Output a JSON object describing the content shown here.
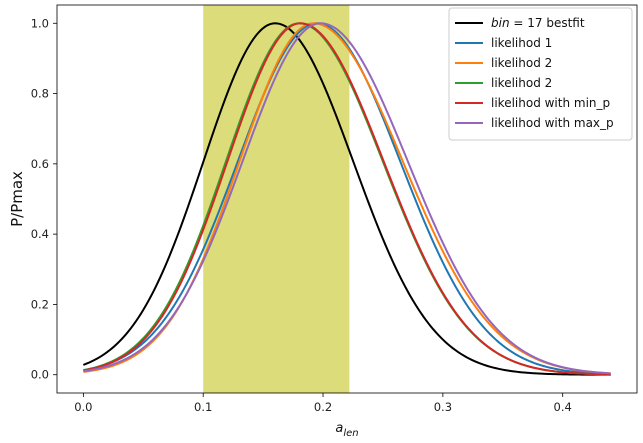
{
  "chart_data": {
    "type": "line",
    "title": "",
    "xlabel_base": "a",
    "xlabel_sub": "len",
    "ylabel": "P/Pmax",
    "xlim": [
      -0.022,
      0.462
    ],
    "ylim": [
      -0.052,
      1.052
    ],
    "xticks": [
      0.0,
      0.1,
      0.2,
      0.3,
      0.4
    ],
    "xtick_labels": [
      "0.0",
      "0.1",
      "0.2",
      "0.3",
      "0.4"
    ],
    "yticks": [
      0.0,
      0.2,
      0.4,
      0.6,
      0.8,
      1.0
    ],
    "ytick_labels": [
      "0.0",
      "0.2",
      "0.4",
      "0.6",
      "0.8",
      "1.0"
    ],
    "grid": false,
    "legend_position": "top-right",
    "shaded_region": {
      "x_start": 0.1,
      "x_end": 0.222,
      "color": "#dcdc7a"
    },
    "x_range": [
      0.0,
      0.44
    ],
    "series": [
      {
        "name_italic": "bin",
        "name": " = 17 bestfit",
        "color": "#000000",
        "peak_x": 0.16,
        "peak_y": 1.0,
        "y_at_0": 0.028,
        "y_at_max": 0.0
      },
      {
        "name": "likelihod 1",
        "color": "#1f77b4",
        "peak_x": 0.195,
        "peak_y": 1.0,
        "y_at_0": 0.013,
        "y_at_max": 0.002
      },
      {
        "name": "likelihod 2",
        "color": "#ff7f0e",
        "peak_x": 0.192,
        "peak_y": 1.0,
        "y_at_0": 0.008,
        "y_at_max": 0.004
      },
      {
        "name": "likelihod 2",
        "color": "#2ca02c",
        "peak_x": 0.18,
        "peak_y": 1.0,
        "y_at_0": 0.013,
        "y_at_max": 0.001
      },
      {
        "name": "likelihod with min_p",
        "color": "#d62728",
        "peak_x": 0.181,
        "peak_y": 1.0,
        "y_at_0": 0.012,
        "y_at_max": 0.001
      },
      {
        "name": "likelihod with max_p",
        "color": "#9467bd",
        "peak_x": 0.198,
        "peak_y": 1.0,
        "y_at_0": 0.01,
        "y_at_max": 0.004
      }
    ]
  }
}
